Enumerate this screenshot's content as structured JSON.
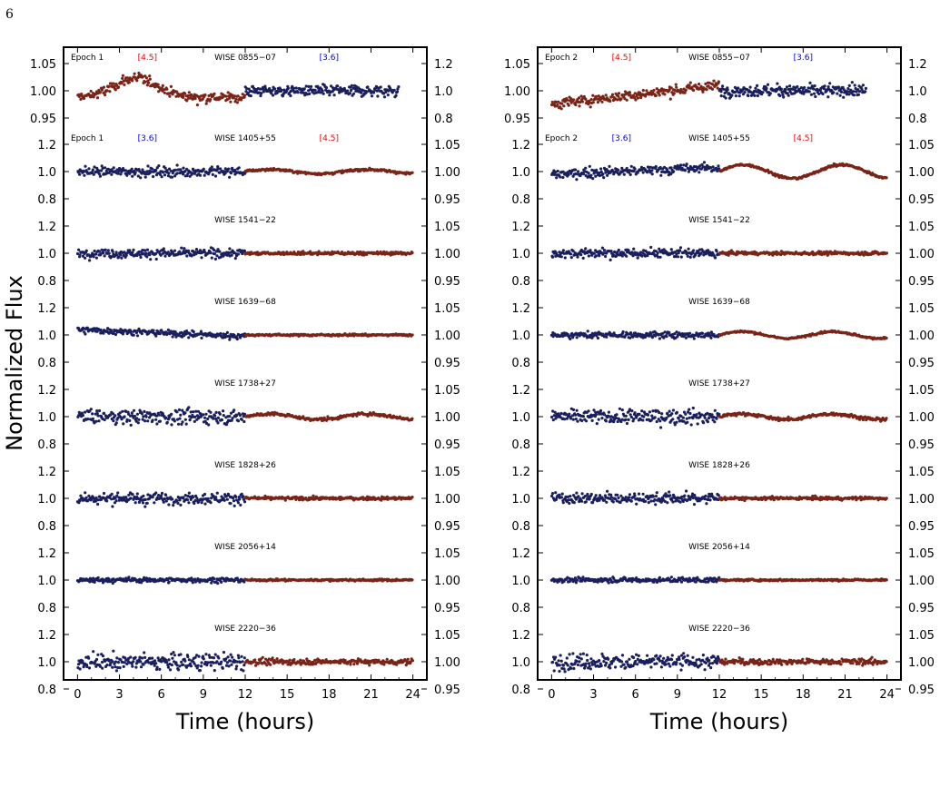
{
  "page": {
    "number": "6"
  },
  "figure": {
    "ylabel": "Normalized Flux"
  },
  "chart_data": [
    {
      "type": "scatter",
      "panel": "Epoch 1",
      "xlabel": "Time (hours)",
      "xlim": [
        -1,
        25
      ],
      "xticks": [
        0,
        3,
        6,
        9,
        12,
        15,
        18,
        21,
        24
      ],
      "grid": false,
      "colors": {
        "ch1": "#1a1f5e",
        "ch2": "#7a2418",
        "ch1_label": "#0000ee",
        "ch2_label": "#ee0000"
      },
      "rows": [
        {
          "name": "WISE 0855−07",
          "epoch": "Epoch 1",
          "first_band": "[4.5]",
          "first_color": "red",
          "second_band": "[3.6]",
          "second_color": "blue",
          "left_ticks": [
            "1.05",
            "1.00",
            "0.95"
          ],
          "right_ticks": [
            "1.2",
            "1.0",
            "0.8"
          ],
          "first_segment": {
            "t": [
              0,
              12
            ],
            "shape": "bump",
            "center": 4.2,
            "amplitude": 0.035,
            "scatter": 0.008
          },
          "second_segment": {
            "t": [
              12,
              23
            ],
            "shape": "flat",
            "scatter": 0.035
          }
        },
        {
          "name": "WISE 1405+55",
          "epoch": "Epoch 1",
          "first_band": "[3.6]",
          "first_color": "blue",
          "second_band": "[4.5]",
          "second_color": "red",
          "left_ticks": [
            "1.2",
            "1.0",
            "0.8"
          ],
          "right_ticks": [
            "1.05",
            "1.00",
            "0.95"
          ],
          "first_segment": {
            "t": [
              0,
              12
            ],
            "shape": "flat",
            "scatter": 0.03
          },
          "second_segment": {
            "t": [
              12,
              24
            ],
            "shape": "wave",
            "amplitude": 0.015,
            "period": 7,
            "scatter": 0.008
          }
        },
        {
          "name": "WISE 1541−22",
          "left_ticks": [
            "1.2",
            "1.0",
            "0.8"
          ],
          "right_ticks": [
            "1.05",
            "1.00",
            "0.95"
          ],
          "first_segment": {
            "t": [
              0,
              12
            ],
            "shape": "flat",
            "scatter": 0.028
          },
          "second_segment": {
            "t": [
              12,
              24
            ],
            "shape": "flat",
            "scatter": 0.01
          }
        },
        {
          "name": "WISE 1639−68",
          "left_ticks": [
            "1.2",
            "1.0",
            "0.8"
          ],
          "right_ticks": [
            "1.05",
            "1.00",
            "0.95"
          ],
          "first_segment": {
            "t": [
              0,
              12
            ],
            "shape": "slope",
            "from": 1.04,
            "to": 0.99,
            "scatter": 0.02
          },
          "second_segment": {
            "t": [
              12,
              24
            ],
            "shape": "flat",
            "scatter": 0.006
          }
        },
        {
          "name": "WISE 1738+27",
          "left_ticks": [
            "1.2",
            "1.0",
            "0.8"
          ],
          "right_ticks": [
            "1.05",
            "1.00",
            "0.95"
          ],
          "first_segment": {
            "t": [
              0,
              12
            ],
            "shape": "flat",
            "scatter": 0.045
          },
          "second_segment": {
            "t": [
              12,
              24
            ],
            "shape": "wave",
            "amplitude": 0.02,
            "period": 7,
            "scatter": 0.01
          }
        },
        {
          "name": "WISE 1828+26",
          "left_ticks": [
            "1.2",
            "1.0",
            "0.8"
          ],
          "right_ticks": [
            "1.05",
            "1.00",
            "0.95"
          ],
          "first_segment": {
            "t": [
              0,
              12
            ],
            "shape": "flat",
            "scatter": 0.035
          },
          "second_segment": {
            "t": [
              12,
              24
            ],
            "shape": "flat",
            "scatter": 0.01
          }
        },
        {
          "name": "WISE 2056+14",
          "left_ticks": [
            "1.2",
            "1.0",
            "0.8"
          ],
          "right_ticks": [
            "1.05",
            "1.00",
            "0.95"
          ],
          "first_segment": {
            "t": [
              0,
              12
            ],
            "shape": "flat",
            "scatter": 0.015
          },
          "second_segment": {
            "t": [
              12,
              24
            ],
            "shape": "flat",
            "scatter": 0.006
          }
        },
        {
          "name": "WISE 2220−36",
          "left_ticks": [
            "1.2",
            "1.0",
            "0.8"
          ],
          "right_ticks": [
            "1.05",
            "1.00",
            "0.95"
          ],
          "first_segment": {
            "t": [
              0,
              12
            ],
            "shape": "flat",
            "scatter": 0.05
          },
          "second_segment": {
            "t": [
              12,
              24
            ],
            "shape": "flat",
            "scatter": 0.018
          }
        }
      ]
    },
    {
      "type": "scatter",
      "panel": "Epoch 2",
      "xlabel": "Time (hours)",
      "xlim": [
        -1,
        25
      ],
      "xticks": [
        0,
        3,
        6,
        9,
        12,
        15,
        18,
        21,
        24
      ],
      "grid": false,
      "colors": {
        "ch1": "#1a1f5e",
        "ch2": "#7a2418",
        "ch1_label": "#0000ee",
        "ch2_label": "#ee0000"
      },
      "rows": [
        {
          "name": "WISE 0855−07",
          "epoch": "Epoch 2",
          "first_band": "[4.5]",
          "first_color": "red",
          "second_band": "[3.6]",
          "second_color": "blue",
          "left_ticks": [
            "1.05",
            "1.00",
            "0.95"
          ],
          "right_ticks": [
            "1.2",
            "1.0",
            "0.8"
          ],
          "first_segment": {
            "t": [
              0,
              12
            ],
            "shape": "slope",
            "from": 0.975,
            "to": 1.01,
            "scatter": 0.008
          },
          "second_segment": {
            "t": [
              12,
              22.5
            ],
            "shape": "flat",
            "scatter": 0.035
          }
        },
        {
          "name": "WISE 1405+55",
          "epoch": "Epoch 2",
          "first_band": "[3.6]",
          "first_color": "blue",
          "second_band": "[4.5]",
          "second_color": "red",
          "left_ticks": [
            "1.2",
            "1.0",
            "0.8"
          ],
          "right_ticks": [
            "1.05",
            "1.00",
            "0.95"
          ],
          "first_segment": {
            "t": [
              0,
              12
            ],
            "shape": "slope",
            "from": 0.98,
            "to": 1.03,
            "scatter": 0.03
          },
          "second_segment": {
            "t": [
              12,
              24
            ],
            "shape": "wave",
            "amplitude": 0.05,
            "period": 7,
            "scatter": 0.008
          }
        },
        {
          "name": "WISE 1541−22",
          "left_ticks": [
            "1.2",
            "1.0",
            "0.8"
          ],
          "right_ticks": [
            "1.05",
            "1.00",
            "0.95"
          ],
          "first_segment": {
            "t": [
              0,
              12
            ],
            "shape": "flat",
            "scatter": 0.028
          },
          "second_segment": {
            "t": [
              12,
              24
            ],
            "shape": "flat",
            "scatter": 0.01
          }
        },
        {
          "name": "WISE 1639−68",
          "left_ticks": [
            "1.2",
            "1.0",
            "0.8"
          ],
          "right_ticks": [
            "1.05",
            "1.00",
            "0.95"
          ],
          "first_segment": {
            "t": [
              0,
              12
            ],
            "shape": "flat",
            "scatter": 0.02
          },
          "second_segment": {
            "t": [
              12,
              24
            ],
            "shape": "wave",
            "amplitude": 0.025,
            "period": 6.5,
            "scatter": 0.006
          }
        },
        {
          "name": "WISE 1738+27",
          "left_ticks": [
            "1.2",
            "1.0",
            "0.8"
          ],
          "right_ticks": [
            "1.05",
            "1.00",
            "0.95"
          ],
          "first_segment": {
            "t": [
              0,
              12
            ],
            "shape": "flat",
            "scatter": 0.045
          },
          "second_segment": {
            "t": [
              12,
              24
            ],
            "shape": "wave",
            "amplitude": 0.02,
            "period": 6.5,
            "scatter": 0.01
          }
        },
        {
          "name": "WISE 1828+26",
          "left_ticks": [
            "1.2",
            "1.0",
            "0.8"
          ],
          "right_ticks": [
            "1.05",
            "1.00",
            "0.95"
          ],
          "first_segment": {
            "t": [
              0,
              12
            ],
            "shape": "flat",
            "scatter": 0.035
          },
          "second_segment": {
            "t": [
              12,
              24
            ],
            "shape": "flat",
            "scatter": 0.01
          }
        },
        {
          "name": "WISE 2056+14",
          "left_ticks": [
            "1.2",
            "1.0",
            "0.8"
          ],
          "right_ticks": [
            "1.05",
            "1.00",
            "0.95"
          ],
          "first_segment": {
            "t": [
              0,
              12
            ],
            "shape": "flat",
            "scatter": 0.015
          },
          "second_segment": {
            "t": [
              12,
              24
            ],
            "shape": "flat",
            "scatter": 0.006
          }
        },
        {
          "name": "WISE 2220−36",
          "left_ticks": [
            "1.2",
            "1.0",
            "0.8"
          ],
          "right_ticks": [
            "1.05",
            "1.00",
            "0.95"
          ],
          "first_segment": {
            "t": [
              0,
              12
            ],
            "shape": "flat",
            "scatter": 0.05
          },
          "second_segment": {
            "t": [
              12,
              24
            ],
            "shape": "flat",
            "scatter": 0.018
          }
        }
      ]
    }
  ]
}
